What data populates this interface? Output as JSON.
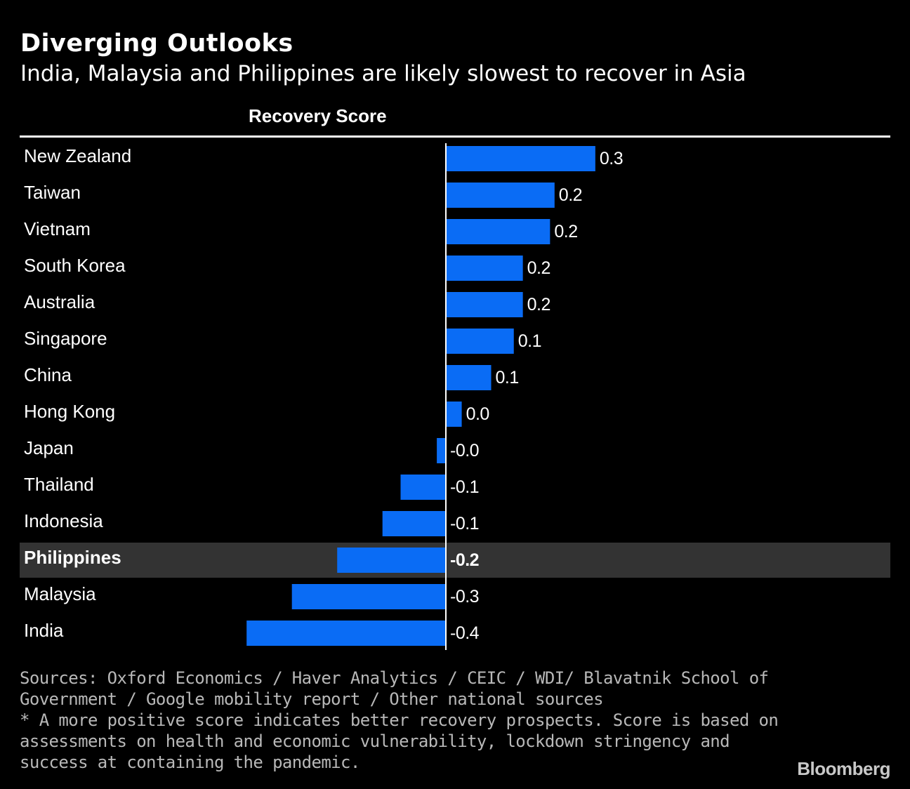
{
  "title": "Diverging Outlooks",
  "subtitle": "India, Malaysia and Philippines are likely slowest to recover in Asia",
  "column_header": "Recovery Score",
  "chart_data": {
    "type": "bar",
    "orientation": "horizontal",
    "title": "Diverging Outlooks",
    "subtitle": "India, Malaysia and Philippines are likely slowest to recover in Asia",
    "xlabel": "Recovery Score",
    "ylabel": "",
    "categories": [
      "New Zealand",
      "Taiwan",
      "Vietnam",
      "South Korea",
      "Australia",
      "Singapore",
      "China",
      "Hong Kong",
      "Japan",
      "Thailand",
      "Indonesia",
      "Philippines",
      "Malaysia",
      "India"
    ],
    "values": [
      0.33,
      0.24,
      0.23,
      0.17,
      0.17,
      0.15,
      0.1,
      0.035,
      -0.02,
      -0.1,
      -0.14,
      -0.24,
      -0.34,
      -0.44
    ],
    "value_labels": [
      "0.3",
      "0.2",
      "0.2",
      "0.2",
      "0.2",
      "0.1",
      "0.1",
      "0.0",
      "-0.0",
      "-0.1",
      "-0.1",
      "-0.2",
      "-0.3",
      "-0.4"
    ],
    "highlight": "Philippines",
    "xlim": [
      -0.5,
      0.5
    ],
    "bar_color": "#0a6cf5",
    "highlight_row_color": "#333333"
  },
  "footnote": {
    "sources_line1": "Sources: Oxford Economics / Haver Analytics / CEIC / WDI/ Blavatnik School of",
    "sources_line2": "Government / Google mobility report / Other national sources",
    "note_line1": "* A more positive score indicates better recovery prospects. Score is based on",
    "note_line2": "assessments on health and economic vulnerability, lockdown stringency and",
    "note_line3": "success at containing the pandemic."
  },
  "brand": "Bloomberg"
}
